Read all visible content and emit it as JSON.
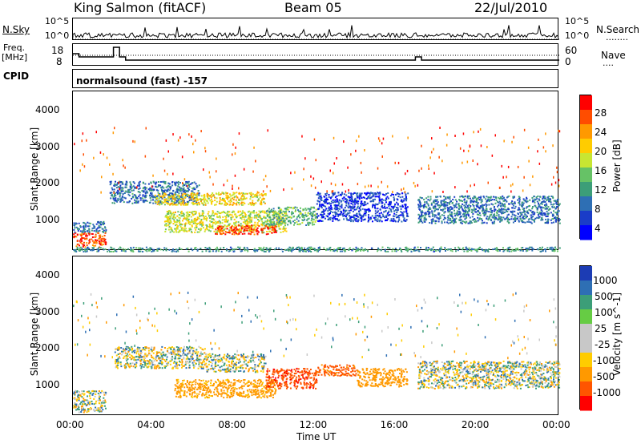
{
  "header": {
    "station": "King Salmon (fitACF)",
    "beam": "Beam 05",
    "date": "22/Jul/2010"
  },
  "top_panels": {
    "nsky_label": "N.Sky",
    "nsky_ticks": [
      "10^5",
      "10^0"
    ],
    "nsearch_label": "N.Search",
    "nsearch_legend": "........",
    "nsearch_ticks": [
      "10^5",
      "10^0"
    ],
    "freq_label_line1": "Freq.",
    "freq_label_line2": "[MHz]",
    "freq_ticks": [
      "18",
      "8"
    ],
    "nave_label": "Nave",
    "nave_legend": "....",
    "nave_ticks": [
      "60",
      "0"
    ],
    "cpid_label": "CPID",
    "cpid_text": "normalsound (fast) -157"
  },
  "power_panel": {
    "ylabel": "Slant Range [km]",
    "yticks": [
      "4000",
      "3000",
      "2000",
      "1000"
    ],
    "colorbar_label": "Power [dB]",
    "colorbar_ticks": [
      "28",
      "24",
      "20",
      "16",
      "12",
      "8",
      "4"
    ],
    "colorbar_colors": [
      "#ff0000",
      "#ff4d00",
      "#ff9900",
      "#ffcc00",
      "#c8e632",
      "#66c266",
      "#3c9e78",
      "#2e6fb4",
      "#1a3cc8",
      "#0000ff"
    ]
  },
  "velocity_panel": {
    "ylabel": "Slant Range [km]",
    "yticks": [
      "4000",
      "3000",
      "2000",
      "1000"
    ],
    "colorbar_label": "Velocity [m s^-1]",
    "colorbar_ticks": [
      "1000",
      "500",
      "100",
      "25",
      "-25",
      "-100",
      "-500",
      "-1000"
    ],
    "colorbar_colors": [
      "#1c3cb4",
      "#2e6fb4",
      "#3c9e78",
      "#66cc44",
      "#c8c8c8",
      "#c8c8c8",
      "#ffcc00",
      "#ff9900",
      "#ff5500",
      "#ff0000"
    ]
  },
  "xaxis": {
    "xlabel": "Time UT",
    "ticks": [
      "00:00",
      "04:00",
      "08:00",
      "12:00",
      "16:00",
      "20:00",
      "00:00"
    ]
  },
  "chart_data": [
    {
      "type": "heatmap",
      "title": "Power",
      "xlabel": "Time UT",
      "ylabel": "Slant Range [km]",
      "xlim_hours": [
        0,
        24
      ],
      "ylim": [
        180,
        4550
      ],
      "colorbar": "Power [dB]",
      "colorbar_range": [
        3,
        30
      ],
      "regions": [
        {
          "t0": 0.0,
          "t1": 1.6,
          "r0": 300,
          "r1": 700,
          "value": 26
        },
        {
          "t0": 0.0,
          "t1": 1.6,
          "r0": 700,
          "r1": 1000,
          "value": 10
        },
        {
          "t0": 1.8,
          "t1": 6.2,
          "r0": 1500,
          "r1": 2100,
          "value": 10
        },
        {
          "t0": 4.0,
          "t1": 9.5,
          "r0": 1450,
          "r1": 1800,
          "value": 20
        },
        {
          "t0": 4.5,
          "t1": 10.5,
          "r0": 700,
          "r1": 1300,
          "value": 18
        },
        {
          "t0": 7.0,
          "t1": 10.0,
          "r0": 650,
          "r1": 900,
          "value": 27
        },
        {
          "t0": 9.5,
          "t1": 12.0,
          "r0": 900,
          "r1": 1400,
          "value": 14
        },
        {
          "t0": 12.0,
          "t1": 16.5,
          "r0": 1000,
          "r1": 1800,
          "value": 7
        },
        {
          "t0": 17.0,
          "t1": 24.0,
          "r0": 950,
          "r1": 1700,
          "value": 10
        },
        {
          "t0": 0.0,
          "t1": 24.0,
          "r0": 180,
          "r1": 300,
          "value": 12
        }
      ]
    },
    {
      "type": "heatmap",
      "title": "Velocity",
      "xlabel": "Time UT",
      "ylabel": "Slant Range [km]",
      "xlim_hours": [
        0,
        24
      ],
      "ylim": [
        180,
        4550
      ],
      "colorbar": "Velocity [m s^-1]",
      "colorbar_range": [
        -1000,
        1000
      ],
      "regions": [
        {
          "t0": 0.0,
          "t1": 1.6,
          "r0": 300,
          "r1": 900,
          "value": 0
        },
        {
          "t0": 2.0,
          "t1": 6.5,
          "r0": 1500,
          "r1": 2100,
          "value": 0
        },
        {
          "t0": 6.5,
          "t1": 9.5,
          "r0": 1400,
          "r1": 1900,
          "value": 0
        },
        {
          "t0": 5.0,
          "t1": 10.0,
          "r0": 700,
          "r1": 1200,
          "value": -200
        },
        {
          "t0": 9.5,
          "t1": 12.0,
          "r0": 950,
          "r1": 1500,
          "value": -800
        },
        {
          "t0": 12.0,
          "t1": 14.0,
          "r0": 1300,
          "r1": 1600,
          "value": -600
        },
        {
          "t0": 14.0,
          "t1": 16.5,
          "r0": 1000,
          "r1": 1500,
          "value": -300
        },
        {
          "t0": 17.0,
          "t1": 24.0,
          "r0": 950,
          "r1": 1700,
          "value": 0
        }
      ]
    }
  ]
}
